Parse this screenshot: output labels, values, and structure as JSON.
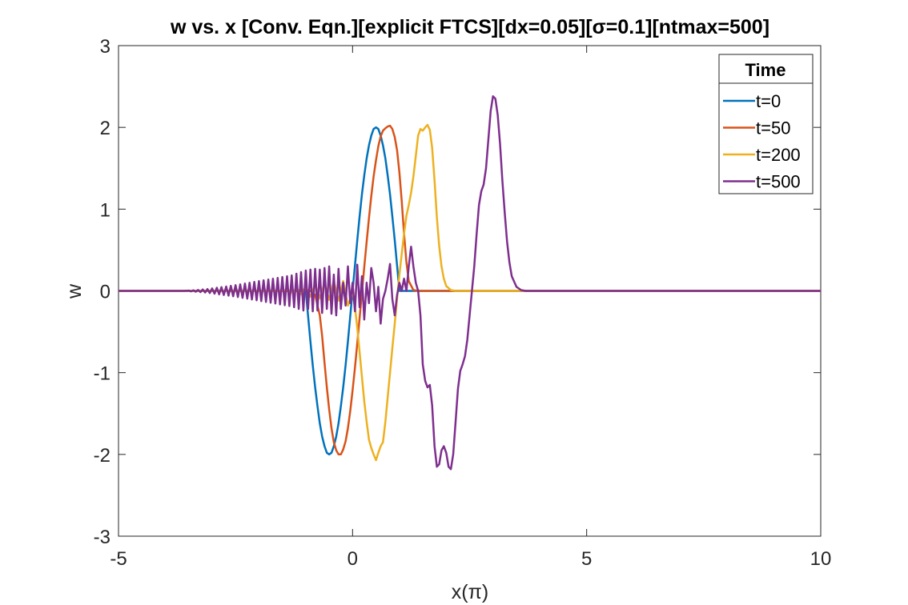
{
  "chart_data": {
    "type": "line",
    "title": "w vs. x [Conv. Eqn.][explicit FTCS][dx=0.05][σ=0.1][ntmax=500]",
    "xlabel": "x(π)",
    "ylabel": "w",
    "xlim": [
      -5,
      10
    ],
    "ylim": [
      -3,
      3
    ],
    "xticks": [
      -5,
      0,
      5,
      10
    ],
    "yticks": [
      -3,
      -2,
      -1,
      0,
      1,
      2,
      3
    ],
    "grid": false,
    "legend": {
      "title": "Time",
      "placement": "top-right"
    },
    "series": [
      {
        "name": "t=0",
        "color": "#0072BD",
        "points": [
          [
            -5,
            0
          ],
          [
            -1,
            0
          ],
          [
            -0.95,
            -0.31
          ],
          [
            -0.9,
            -0.62
          ],
          [
            -0.85,
            -0.91
          ],
          [
            -0.8,
            -1.18
          ],
          [
            -0.75,
            -1.41
          ],
          [
            -0.7,
            -1.62
          ],
          [
            -0.65,
            -1.78
          ],
          [
            -0.6,
            -1.9
          ],
          [
            -0.55,
            -1.98
          ],
          [
            -0.5,
            -2.0
          ],
          [
            -0.45,
            -1.98
          ],
          [
            -0.4,
            -1.9
          ],
          [
            -0.35,
            -1.78
          ],
          [
            -0.3,
            -1.62
          ],
          [
            -0.25,
            -1.41
          ],
          [
            -0.2,
            -1.18
          ],
          [
            -0.15,
            -0.91
          ],
          [
            -0.1,
            -0.62
          ],
          [
            -0.05,
            -0.31
          ],
          [
            0,
            0
          ],
          [
            0.05,
            0.31
          ],
          [
            0.1,
            0.62
          ],
          [
            0.15,
            0.91
          ],
          [
            0.2,
            1.18
          ],
          [
            0.25,
            1.41
          ],
          [
            0.3,
            1.62
          ],
          [
            0.35,
            1.78
          ],
          [
            0.4,
            1.9
          ],
          [
            0.45,
            1.98
          ],
          [
            0.5,
            2.0
          ],
          [
            0.55,
            1.98
          ],
          [
            0.6,
            1.9
          ],
          [
            0.65,
            1.78
          ],
          [
            0.7,
            1.62
          ],
          [
            0.75,
            1.41
          ],
          [
            0.8,
            1.18
          ],
          [
            0.85,
            0.91
          ],
          [
            0.9,
            0.62
          ],
          [
            0.95,
            0.31
          ],
          [
            1.0,
            0
          ],
          [
            10,
            0
          ]
        ]
      },
      {
        "name": "t=50",
        "color": "#D95319",
        "points": [
          [
            -5,
            0
          ],
          [
            -1.2,
            0
          ],
          [
            -1.0,
            0.02
          ],
          [
            -0.9,
            0.0
          ],
          [
            -0.8,
            -0.05
          ],
          [
            -0.7,
            -0.3
          ],
          [
            -0.65,
            -0.55
          ],
          [
            -0.6,
            -0.88
          ],
          [
            -0.55,
            -1.18
          ],
          [
            -0.5,
            -1.45
          ],
          [
            -0.45,
            -1.68
          ],
          [
            -0.4,
            -1.85
          ],
          [
            -0.35,
            -1.95
          ],
          [
            -0.3,
            -2.0
          ],
          [
            -0.25,
            -2.0
          ],
          [
            -0.2,
            -1.94
          ],
          [
            -0.15,
            -1.84
          ],
          [
            -0.1,
            -1.68
          ],
          [
            -0.05,
            -1.47
          ],
          [
            0.0,
            -1.22
          ],
          [
            0.05,
            -0.94
          ],
          [
            0.1,
            -0.64
          ],
          [
            0.15,
            -0.33
          ],
          [
            0.2,
            -0.02
          ],
          [
            0.25,
            0.29
          ],
          [
            0.3,
            0.6
          ],
          [
            0.35,
            0.89
          ],
          [
            0.4,
            1.16
          ],
          [
            0.45,
            1.4
          ],
          [
            0.5,
            1.6
          ],
          [
            0.55,
            1.77
          ],
          [
            0.6,
            1.89
          ],
          [
            0.65,
            1.96
          ],
          [
            0.7,
            1.99
          ],
          [
            0.75,
            2.01
          ],
          [
            0.8,
            2.02
          ],
          [
            0.85,
            1.98
          ],
          [
            0.9,
            1.88
          ],
          [
            0.95,
            1.72
          ],
          [
            1.0,
            1.45
          ],
          [
            1.05,
            1.1
          ],
          [
            1.1,
            0.7
          ],
          [
            1.15,
            0.35
          ],
          [
            1.2,
            0.12
          ],
          [
            1.3,
            0.01
          ],
          [
            1.4,
            0
          ],
          [
            10,
            0
          ]
        ]
      },
      {
        "name": "t=200",
        "color": "#EDB120",
        "points": [
          [
            -5,
            0
          ],
          [
            -1.6,
            0
          ],
          [
            -1.4,
            0.01
          ],
          [
            -1.3,
            -0.02
          ],
          [
            -1.2,
            0.03
          ],
          [
            -1.1,
            -0.04
          ],
          [
            -1.0,
            0.05
          ],
          [
            -0.9,
            -0.07
          ],
          [
            -0.8,
            0.08
          ],
          [
            -0.7,
            -0.09
          ],
          [
            -0.6,
            0.1
          ],
          [
            -0.5,
            -0.11
          ],
          [
            -0.4,
            0.12
          ],
          [
            -0.35,
            0.0
          ],
          [
            -0.3,
            -0.12
          ],
          [
            -0.2,
            0.12
          ],
          [
            -0.1,
            -0.18
          ],
          [
            -0.05,
            -0.1
          ],
          [
            0.0,
            0.0
          ],
          [
            0.05,
            -0.2
          ],
          [
            0.1,
            -0.45
          ],
          [
            0.15,
            -0.75
          ],
          [
            0.2,
            -1.05
          ],
          [
            0.25,
            -1.35
          ],
          [
            0.3,
            -1.6
          ],
          [
            0.35,
            -1.82
          ],
          [
            0.4,
            -1.92
          ],
          [
            0.45,
            -2.0
          ],
          [
            0.5,
            -2.07
          ],
          [
            0.55,
            -1.98
          ],
          [
            0.6,
            -1.9
          ],
          [
            0.65,
            -1.85
          ],
          [
            0.7,
            -1.6
          ],
          [
            0.75,
            -1.3
          ],
          [
            0.8,
            -1.0
          ],
          [
            0.85,
            -0.7
          ],
          [
            0.9,
            -0.4
          ],
          [
            0.95,
            -0.1
          ],
          [
            1.0,
            0.2
          ],
          [
            1.05,
            0.45
          ],
          [
            1.1,
            0.7
          ],
          [
            1.15,
            0.92
          ],
          [
            1.2,
            1.05
          ],
          [
            1.25,
            1.2
          ],
          [
            1.3,
            1.4
          ],
          [
            1.35,
            1.65
          ],
          [
            1.4,
            1.9
          ],
          [
            1.45,
            1.98
          ],
          [
            1.5,
            1.96
          ],
          [
            1.55,
            2.0
          ],
          [
            1.6,
            2.03
          ],
          [
            1.65,
            1.97
          ],
          [
            1.7,
            1.75
          ],
          [
            1.75,
            1.35
          ],
          [
            1.8,
            0.9
          ],
          [
            1.85,
            0.55
          ],
          [
            1.9,
            0.3
          ],
          [
            1.95,
            0.15
          ],
          [
            2.0,
            0.06
          ],
          [
            2.1,
            0.01
          ],
          [
            2.2,
            0
          ],
          [
            10,
            0
          ]
        ]
      },
      {
        "name": "t=500",
        "color": "#7E2F8E",
        "points": [
          [
            -5,
            0
          ],
          [
            -3.6,
            0
          ],
          [
            -3.5,
            0.004
          ],
          [
            -3.45,
            -0.006
          ],
          [
            -3.4,
            0.008
          ],
          [
            -3.35,
            -0.01
          ],
          [
            -3.3,
            0.012
          ],
          [
            -3.25,
            -0.015
          ],
          [
            -3.2,
            0.018
          ],
          [
            -3.15,
            -0.02
          ],
          [
            -3.1,
            0.023
          ],
          [
            -3.05,
            -0.026
          ],
          [
            -3.0,
            0.03
          ],
          [
            -2.95,
            -0.034
          ],
          [
            -2.9,
            0.038
          ],
          [
            -2.85,
            -0.042
          ],
          [
            -2.8,
            0.046
          ],
          [
            -2.75,
            -0.05
          ],
          [
            -2.7,
            0.054
          ],
          [
            -2.65,
            -0.058
          ],
          [
            -2.6,
            0.062
          ],
          [
            -2.55,
            -0.066
          ],
          [
            -2.5,
            0.07
          ],
          [
            -2.45,
            -0.075
          ],
          [
            -2.4,
            0.08
          ],
          [
            -2.35,
            -0.085
          ],
          [
            -2.3,
            0.09
          ],
          [
            -2.25,
            -0.095
          ],
          [
            -2.2,
            0.1
          ],
          [
            -2.15,
            -0.105
          ],
          [
            -2.1,
            0.11
          ],
          [
            -2.05,
            -0.115
          ],
          [
            -2.0,
            0.12
          ],
          [
            -1.95,
            -0.125
          ],
          [
            -1.9,
            0.13
          ],
          [
            -1.85,
            -0.135
          ],
          [
            -1.8,
            0.14
          ],
          [
            -1.75,
            -0.145
          ],
          [
            -1.7,
            0.15
          ],
          [
            -1.65,
            -0.155
          ],
          [
            -1.6,
            0.16
          ],
          [
            -1.55,
            -0.165
          ],
          [
            -1.5,
            0.17
          ],
          [
            -1.45,
            -0.175
          ],
          [
            -1.4,
            0.18
          ],
          [
            -1.35,
            -0.185
          ],
          [
            -1.3,
            0.19
          ],
          [
            -1.25,
            -0.2
          ],
          [
            -1.2,
            0.21
          ],
          [
            -1.15,
            -0.22
          ],
          [
            -1.1,
            0.23
          ],
          [
            -1.05,
            -0.24
          ],
          [
            -1.0,
            0.25
          ],
          [
            -0.95,
            -0.22
          ],
          [
            -0.9,
            0.26
          ],
          [
            -0.85,
            -0.25
          ],
          [
            -0.8,
            0.27
          ],
          [
            -0.75,
            -0.24
          ],
          [
            -0.7,
            0.26
          ],
          [
            -0.65,
            -0.27
          ],
          [
            -0.6,
            0.28
          ],
          [
            -0.55,
            -0.22
          ],
          [
            -0.5,
            0.3
          ],
          [
            -0.45,
            -0.28
          ],
          [
            -0.4,
            0.2
          ],
          [
            -0.35,
            -0.3
          ],
          [
            -0.3,
            0.27
          ],
          [
            -0.25,
            -0.22
          ],
          [
            -0.2,
            0.1
          ],
          [
            -0.15,
            -0.18
          ],
          [
            -0.1,
            0.3
          ],
          [
            -0.05,
            -0.15
          ],
          [
            0.0,
            0.1
          ],
          [
            0.05,
            -0.25
          ],
          [
            0.1,
            0.32
          ],
          [
            0.15,
            -0.2
          ],
          [
            0.2,
            0.18
          ],
          [
            0.25,
            -0.35
          ],
          [
            0.3,
            0.1
          ],
          [
            0.35,
            -0.15
          ],
          [
            0.4,
            0.28
          ],
          [
            0.45,
            0.1
          ],
          [
            0.5,
            -0.25
          ],
          [
            0.55,
            0.05
          ],
          [
            0.6,
            -0.4
          ],
          [
            0.65,
            -0.1
          ],
          [
            0.7,
            0.0
          ],
          [
            0.75,
            0.15
          ],
          [
            0.8,
            0.33
          ],
          [
            0.85,
            -0.1
          ],
          [
            0.9,
            -0.3
          ],
          [
            0.95,
            -0.05
          ],
          [
            1.0,
            0.1
          ],
          [
            1.05,
            0.0
          ],
          [
            1.1,
            0.15
          ],
          [
            1.15,
            0.0
          ],
          [
            1.2,
            0.3
          ],
          [
            1.25,
            0.54
          ],
          [
            1.3,
            0.3
          ],
          [
            1.35,
            0.1
          ],
          [
            1.4,
            0.0
          ],
          [
            1.45,
            -0.3
          ],
          [
            1.5,
            -0.9
          ],
          [
            1.55,
            -1.1
          ],
          [
            1.6,
            -1.18
          ],
          [
            1.65,
            -1.15
          ],
          [
            1.7,
            -1.4
          ],
          [
            1.75,
            -1.9
          ],
          [
            1.8,
            -2.15
          ],
          [
            1.85,
            -2.12
          ],
          [
            1.9,
            -1.95
          ],
          [
            1.95,
            -1.9
          ],
          [
            2.0,
            -1.98
          ],
          [
            2.05,
            -2.15
          ],
          [
            2.1,
            -2.18
          ],
          [
            2.15,
            -2.0
          ],
          [
            2.2,
            -1.6
          ],
          [
            2.25,
            -1.2
          ],
          [
            2.3,
            -0.98
          ],
          [
            2.35,
            -0.9
          ],
          [
            2.4,
            -0.8
          ],
          [
            2.45,
            -0.6
          ],
          [
            2.5,
            -0.3
          ],
          [
            2.55,
            0.0
          ],
          [
            2.6,
            0.3
          ],
          [
            2.65,
            0.7
          ],
          [
            2.7,
            1.05
          ],
          [
            2.75,
            1.22
          ],
          [
            2.8,
            1.3
          ],
          [
            2.85,
            1.5
          ],
          [
            2.9,
            1.85
          ],
          [
            2.95,
            2.2
          ],
          [
            3.0,
            2.38
          ],
          [
            3.05,
            2.35
          ],
          [
            3.1,
            2.15
          ],
          [
            3.15,
            1.8
          ],
          [
            3.2,
            1.35
          ],
          [
            3.25,
            0.95
          ],
          [
            3.3,
            0.6
          ],
          [
            3.35,
            0.35
          ],
          [
            3.4,
            0.18
          ],
          [
            3.5,
            0.05
          ],
          [
            3.6,
            0.01
          ],
          [
            3.7,
            0
          ],
          [
            10,
            0
          ]
        ]
      }
    ]
  }
}
